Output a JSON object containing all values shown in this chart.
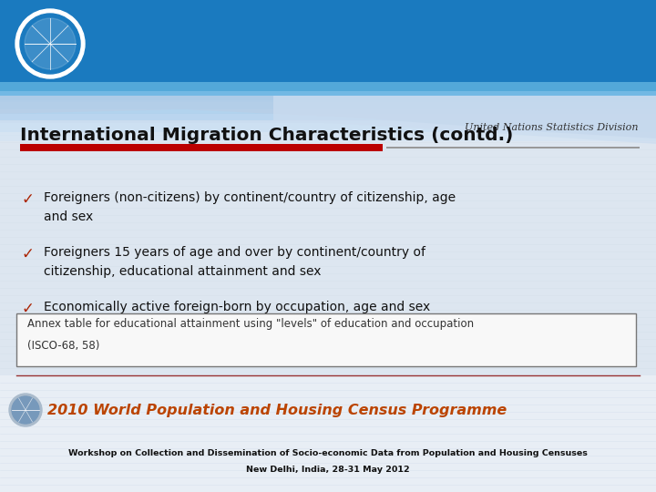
{
  "title": "International Migration Characteristics (contd.)",
  "bullet_items": [
    "Foreigners (non-citizens) by continent/country of citizenship, age\nand sex",
    "Foreigners 15 years of age and over by continent/country of\ncitizenship, educational attainment and sex",
    "Economically active foreign-born by occupation, age and sex"
  ],
  "annex_text_line1": "Annex table for educational attainment using \"levels\" of education and occupation",
  "annex_text_line2": "(ISCO-68, 58)",
  "footer_line1": "Workshop on Collection and Dissemination of Socio-economic Data from Population and Housing Censuses",
  "footer_line2": "New Delhi, India, 28-31 May 2012",
  "un_text": "United Nations Statistics Division",
  "programme_text": "2010 World Population and Housing Census Programme",
  "header_blue_dark": "#1a7abf",
  "header_blue_mid": "#4499cc",
  "header_wave_color": "#c8dff0",
  "title_color": "#111111",
  "red_bar_color": "#bb0000",
  "gray_line_color": "#999999",
  "bullet_check_color": "#aa2200",
  "bullet_text_color": "#111111",
  "annex_border_color": "#777777",
  "annex_bg_color": "#f8f8f8",
  "footer_sep_color": "#993333",
  "bottom_bg_color": "#e8eef5",
  "programme_color": "#bb4400",
  "un_text_color": "#333333",
  "bg_main": "#dde6f0",
  "bg_stripe_color": "#d0dce8"
}
